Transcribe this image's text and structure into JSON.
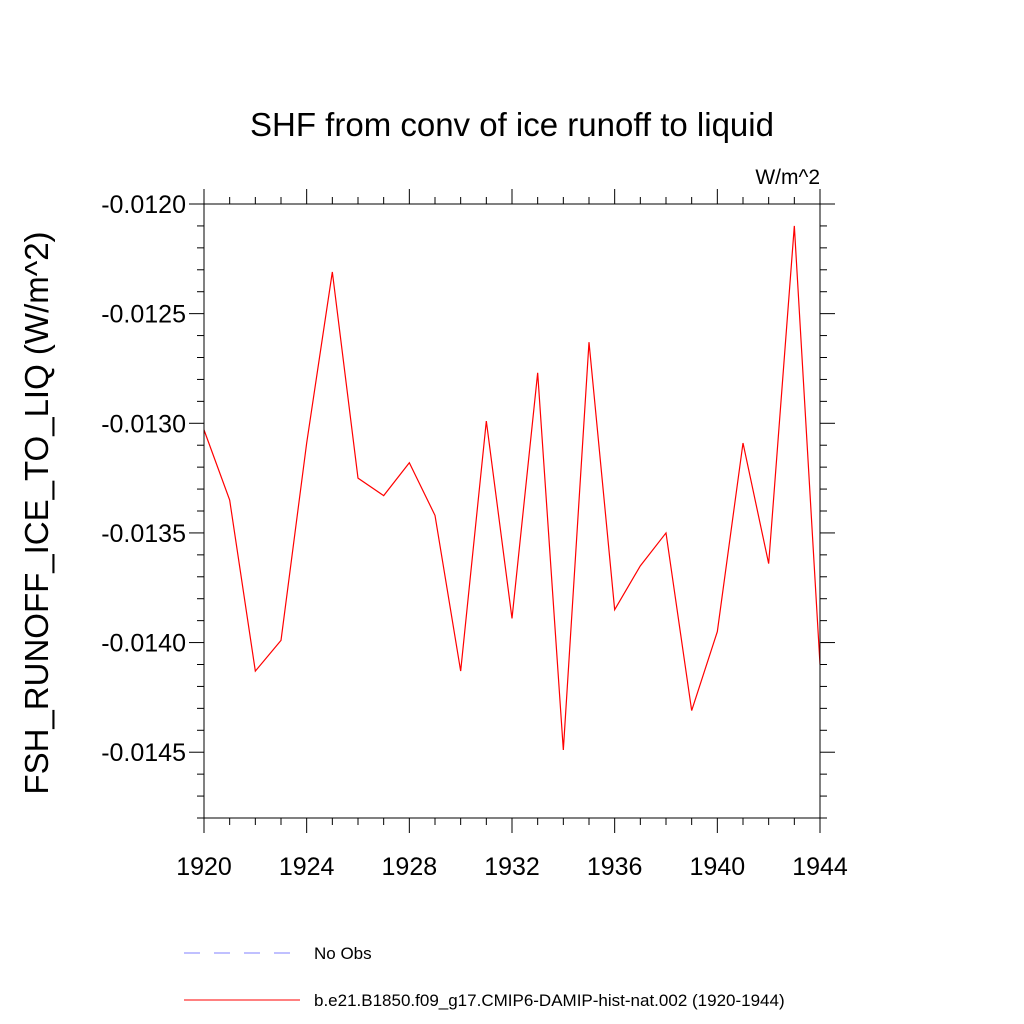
{
  "chart_data": {
    "type": "line",
    "title": "SHF from conv of ice runoff to liquid",
    "units": "W/m^2",
    "ylabel": "FSH_RUNOFF_ICE_TO_LIQ  (W/m^2)",
    "xlabel": "",
    "xlim": [
      1920,
      1944
    ],
    "ylim": [
      -0.0148,
      -0.012
    ],
    "x_ticks": [
      1920,
      1924,
      1928,
      1932,
      1936,
      1940,
      1944
    ],
    "x_tick_labels": [
      "1920",
      "1924",
      "1928",
      "1932",
      "1936",
      "1940",
      "1944"
    ],
    "y_ticks": [
      -0.012,
      -0.0125,
      -0.013,
      -0.0135,
      -0.014,
      -0.0145
    ],
    "y_tick_labels": [
      "-0.0120",
      "-0.0125",
      "-0.0130",
      "-0.0135",
      "-0.0140",
      "-0.0145"
    ],
    "y_minor_step": 0.0001,
    "x_minor_step": 1,
    "grid": false,
    "legend_position": "bottom",
    "x": [
      1920,
      1921,
      1922,
      1923,
      1924,
      1925,
      1926,
      1927,
      1928,
      1929,
      1930,
      1931,
      1932,
      1933,
      1934,
      1935,
      1936,
      1937,
      1938,
      1939,
      1940,
      1941,
      1942,
      1943,
      1944
    ],
    "series": [
      {
        "name": "b.e21.B1850.f09_g17.CMIP6-DAMIP-hist-nat.002 (1920-1944)",
        "color": "#ff0000",
        "style": "solid",
        "values": [
          -0.01303,
          -0.01335,
          -0.01413,
          -0.01399,
          -0.01309,
          -0.01231,
          -0.01325,
          -0.01333,
          -0.01318,
          -0.01342,
          -0.01413,
          -0.01299,
          -0.01389,
          -0.01277,
          -0.01449,
          -0.01263,
          -0.01385,
          -0.01365,
          -0.0135,
          -0.01431,
          -0.01395,
          -0.01309,
          -0.01364,
          -0.0121,
          -0.0141
        ]
      }
    ],
    "legend": [
      {
        "label": "No Obs",
        "color": "#8080ff",
        "style": "dashed"
      },
      {
        "label": "b.e21.B1850.f09_g17.CMIP6-DAMIP-hist-nat.002 (1920-1944)",
        "color": "#ff0000",
        "style": "solid"
      }
    ]
  }
}
